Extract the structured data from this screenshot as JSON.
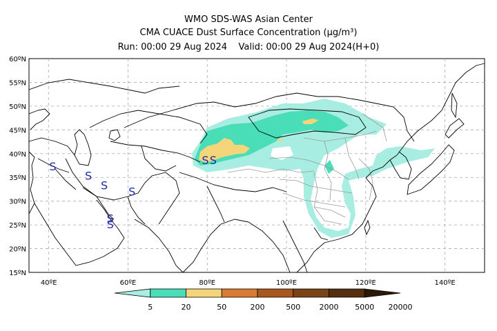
{
  "header": {
    "line1": "WMO SDS-WAS Asian Center",
    "line2": "CMA CUACE Dust Surface Concentration (μg/m³)",
    "line3": "Run: 00:00 29 Aug 2024    Valid: 00:00 29 Aug 2024(H+0)"
  },
  "axes": {
    "lat_ticks": [
      "60ºN",
      "55ºN",
      "50ºN",
      "45ºN",
      "40ºN",
      "35ºN",
      "30ºN",
      "25ºN",
      "20ºN",
      "15ºN"
    ],
    "lon_ticks": [
      "40ºE",
      "60ºE",
      "80ºE",
      "100ºE",
      "120ºE",
      "140ºE"
    ],
    "lat_range": [
      15,
      60
    ],
    "lon_range": [
      35,
      150
    ]
  },
  "storm_symbols": [
    {
      "label": "S",
      "lon": 41,
      "lat": 36.5
    },
    {
      "label": "S",
      "lon": 50,
      "lat": 34.5
    },
    {
      "label": "S",
      "lon": 54,
      "lat": 32.5
    },
    {
      "label": "S",
      "lon": 61,
      "lat": 31.2
    },
    {
      "label": "S",
      "lon": 55.5,
      "lat": 25.5
    },
    {
      "label": "S",
      "lon": 55.5,
      "lat": 24.3
    },
    {
      "label": "S",
      "lon": 79.5,
      "lat": 37.8
    },
    {
      "label": "S",
      "lon": 81.5,
      "lat": 37.8
    }
  ],
  "colorbar": {
    "labels": [
      "5",
      "20",
      "50",
      "200",
      "500",
      "2000",
      "5000",
      "20000"
    ],
    "colors": [
      "#a8ede1",
      "#49ddb8",
      "#f4d57a",
      "#d97b33",
      "#a8581e",
      "#7a4516",
      "#553010",
      "#2c1a08"
    ]
  }
}
